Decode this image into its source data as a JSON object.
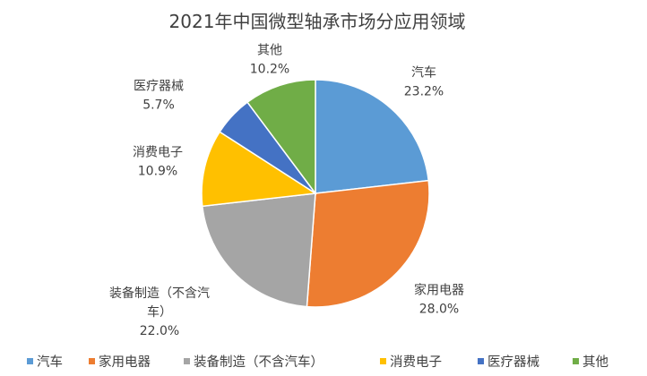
{
  "chart_data": {
    "type": "pie",
    "title": "2021年中国微型轴承市场分应用领域",
    "legend_position": "bottom",
    "slices": [
      {
        "name": "汽车",
        "value": 23.2,
        "label_name": [
          "汽车"
        ],
        "label_pct": "23.2%",
        "color": "#5B9BD5"
      },
      {
        "name": "家用电器",
        "value": 28.0,
        "label_name": [
          "家用电器"
        ],
        "label_pct": "28.0%",
        "color": "#ED7D31"
      },
      {
        "name": "装备制造（不含汽车）",
        "value": 22.0,
        "label_name": [
          "装备制造（不含汽",
          "车）"
        ],
        "label_pct": "22.0%",
        "color": "#A5A5A5"
      },
      {
        "name": "消费电子",
        "value": 10.9,
        "label_name": [
          "消费电子"
        ],
        "label_pct": "10.9%",
        "color": "#FFC000"
      },
      {
        "name": "医疗器械",
        "value": 5.7,
        "label_name": [
          "医疗器械"
        ],
        "label_pct": "5.7%",
        "color": "#4472C4"
      },
      {
        "name": "其他",
        "value": 10.2,
        "label_name": [
          "其他"
        ],
        "label_pct": "10.2%",
        "color": "#70AD47"
      }
    ]
  }
}
